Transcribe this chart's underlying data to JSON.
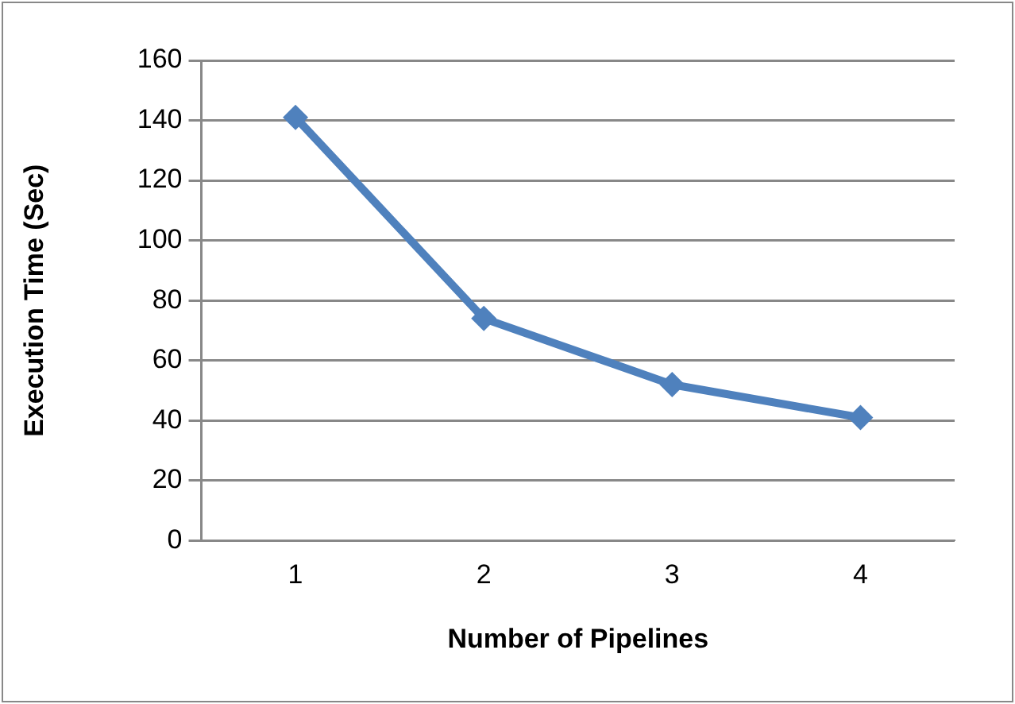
{
  "chart_data": {
    "type": "line",
    "xlabel": "Number of Pipelines",
    "ylabel": "Execution Time (Sec)",
    "categories": [
      "1",
      "2",
      "3",
      "4"
    ],
    "series": [
      {
        "color": "#4f81bd",
        "values": [
          141,
          74,
          52,
          41
        ]
      }
    ],
    "ylim": [
      0,
      160
    ],
    "yticks": [
      0,
      20,
      40,
      60,
      80,
      100,
      120,
      140,
      160
    ],
    "grid": "y",
    "legend": false,
    "marker": "diamond",
    "line_style": "solid"
  }
}
